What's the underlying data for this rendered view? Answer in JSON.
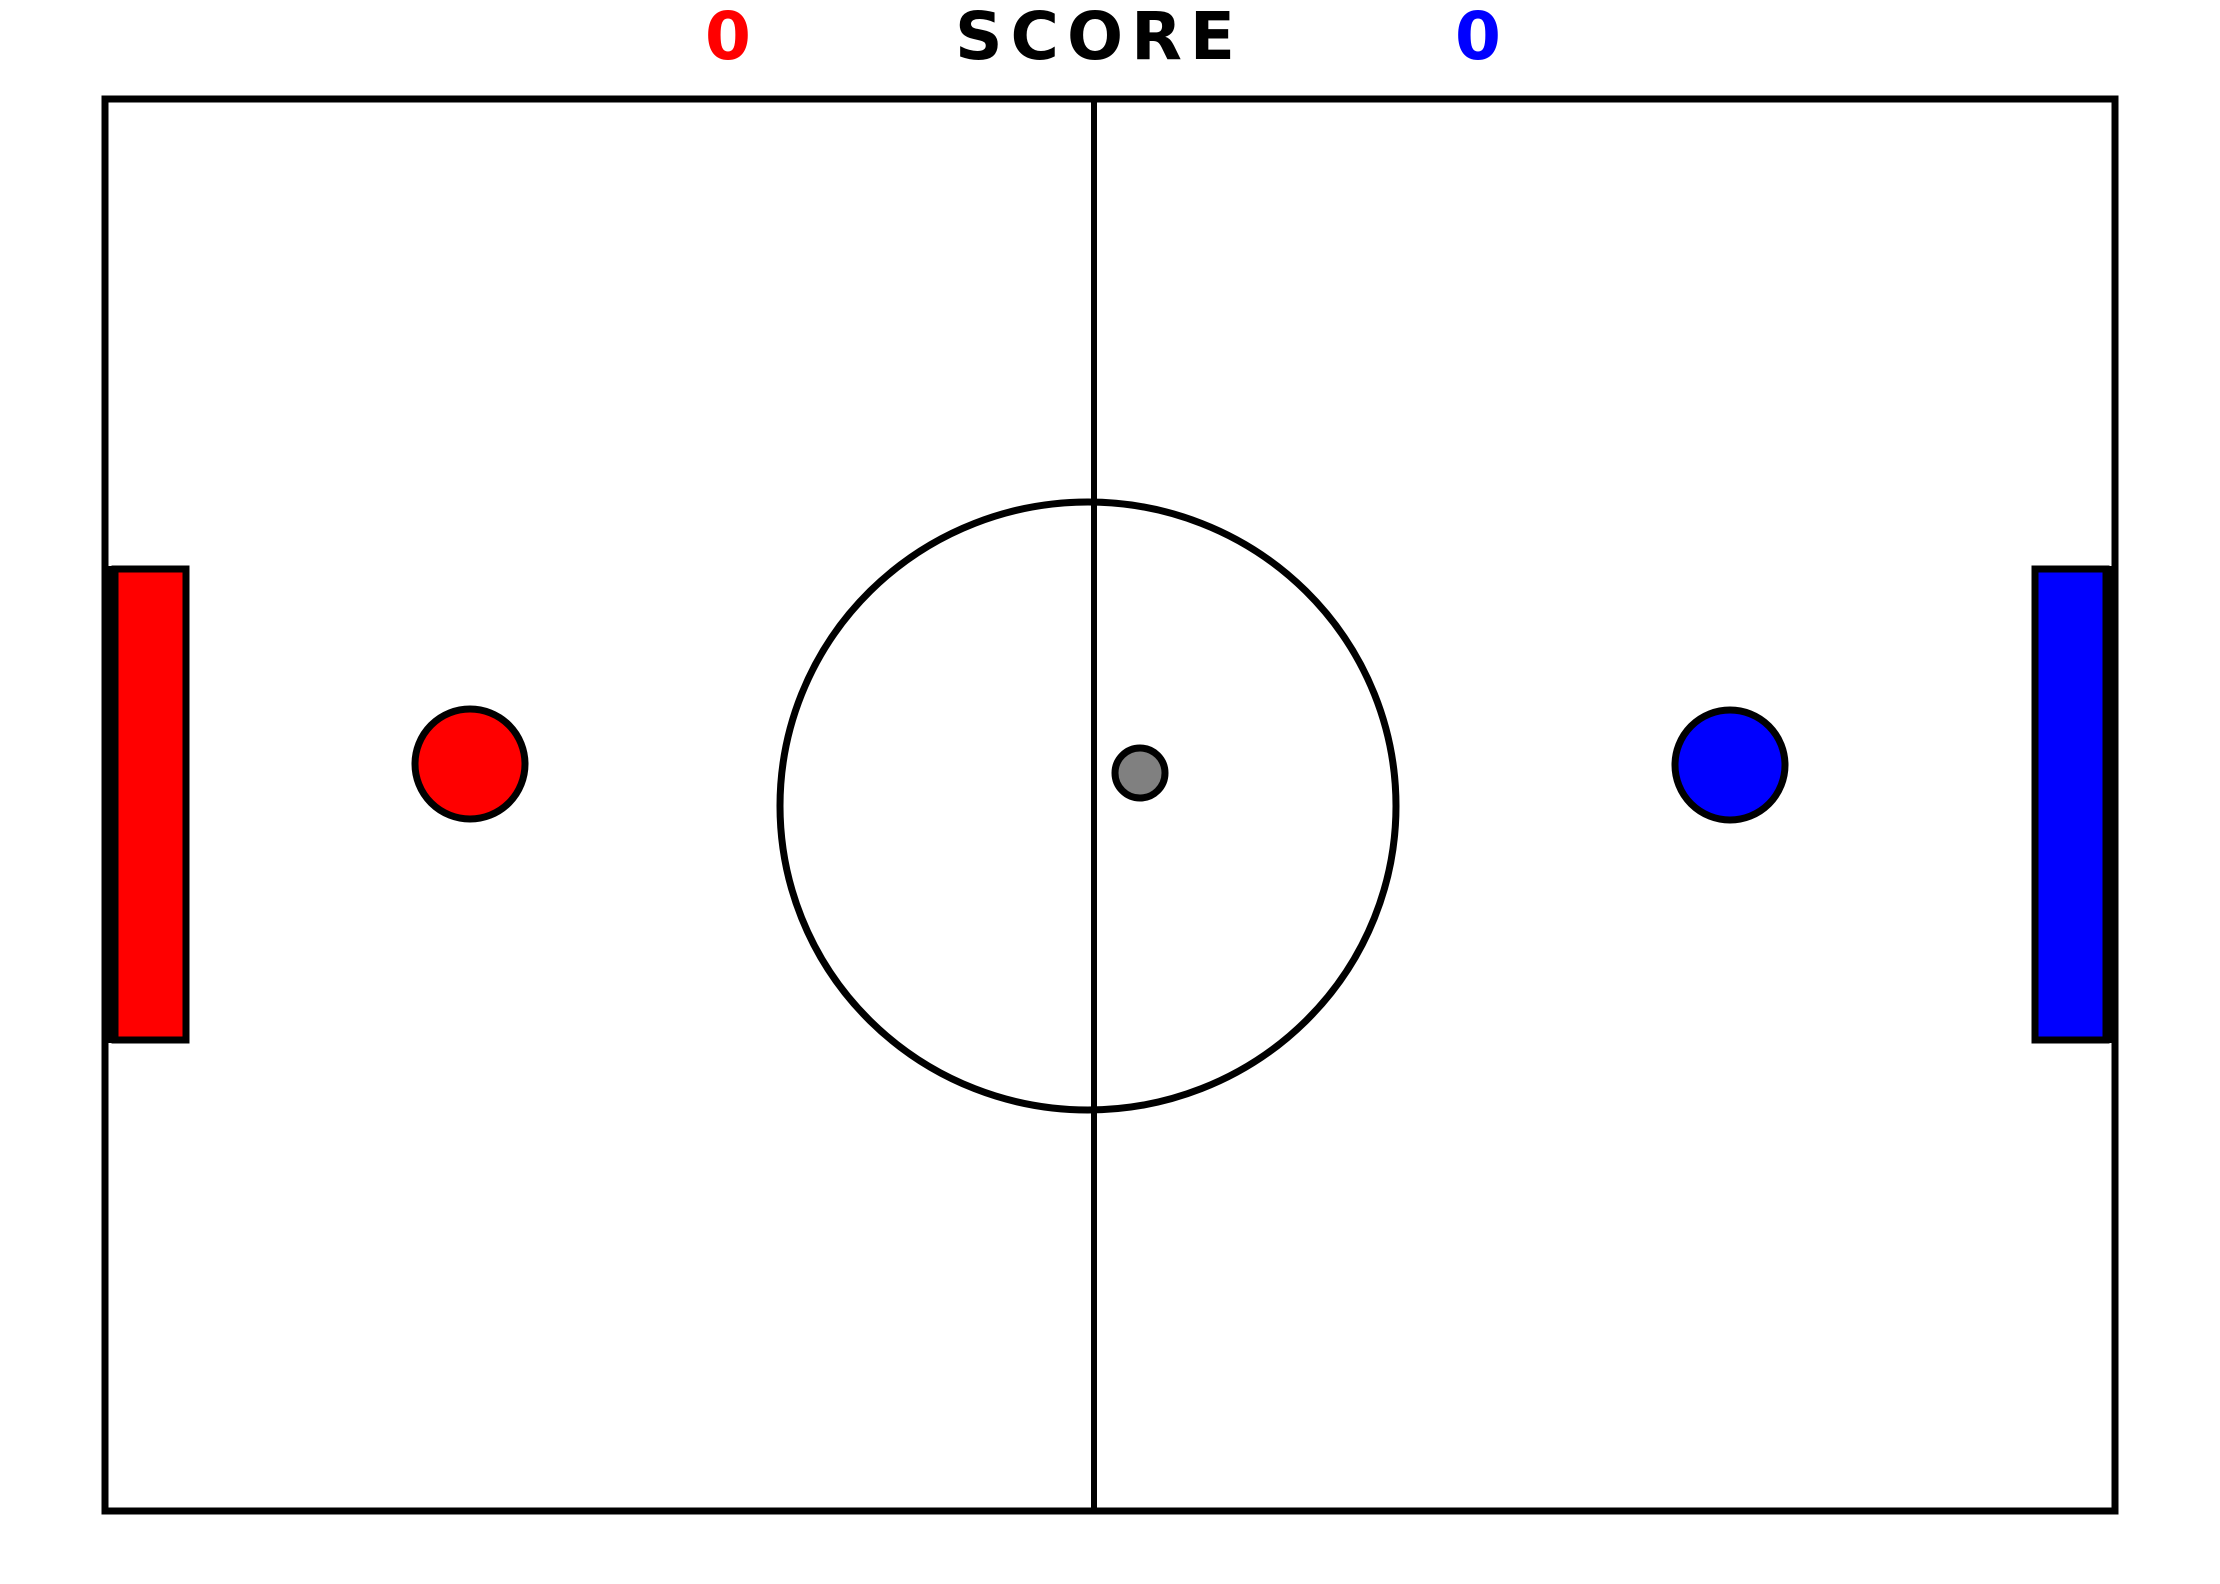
{
  "scoreboard": {
    "red_score": "0",
    "label": "SCORE",
    "blue_score": "0"
  },
  "colors": {
    "red_team": "#ff0000",
    "blue_team": "#0000ff",
    "puck": "#808080",
    "lines": "#000000",
    "field_background": "#ffffff"
  }
}
